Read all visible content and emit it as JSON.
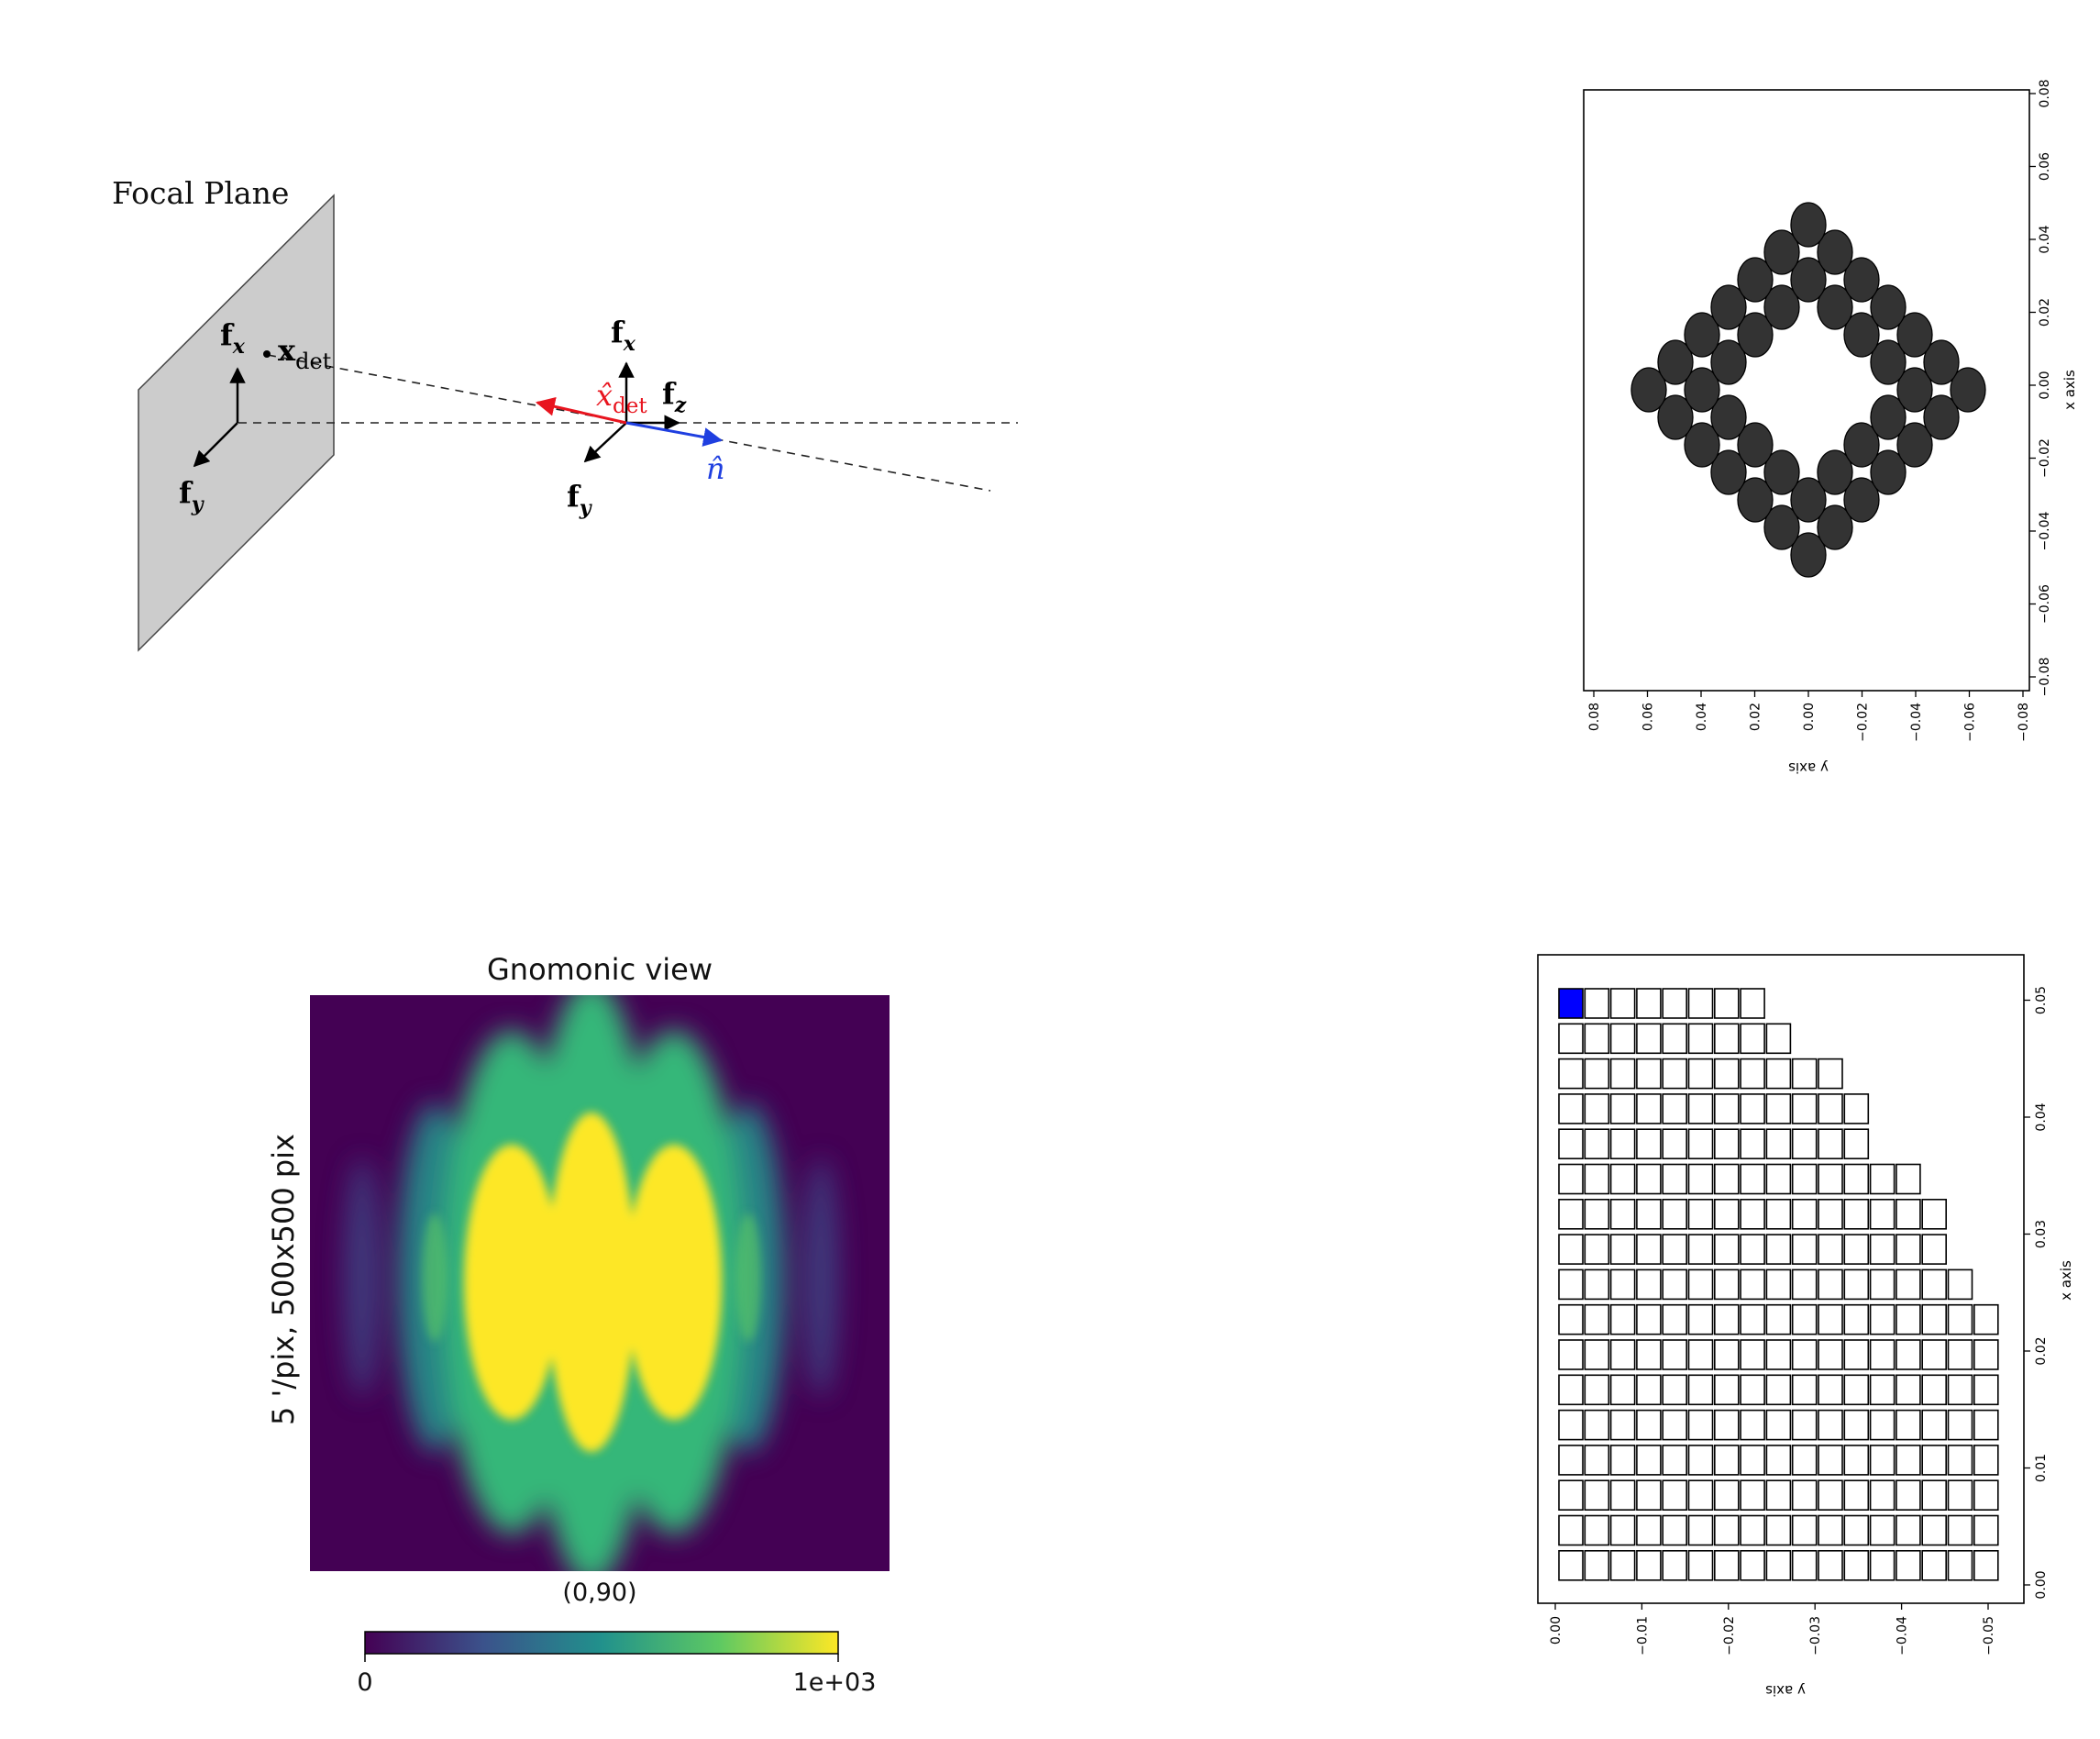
{
  "diagram": {
    "title": "Focal Plane",
    "labels": {
      "fx_left": "f",
      "fx_left_sub": "x",
      "fy_left": "f",
      "fy_left_sub": "y",
      "xdet": "x",
      "xdet_sub": "det",
      "fx_right": "f",
      "fx_right_sub": "x",
      "fz_right": "f",
      "fz_right_sub": "z",
      "fy_right": "f",
      "fy_right_sub": "y",
      "xhat": "x̂",
      "xhat_sub": "det",
      "nhat": "n̂"
    },
    "colors": {
      "plane": "#cccccc",
      "xhat": "#e8141e",
      "nhat": "#1f3fe0"
    }
  },
  "hex_plot": {
    "ylabel": "x axis",
    "xlabel": "y axis",
    "x_ticks": [
      "0.08",
      "0.06",
      "0.04",
      "0.02",
      "0.00",
      "−0.02",
      "−0.04",
      "−0.06",
      "−0.08"
    ],
    "y_ticks": [
      "−0.08",
      "−0.06",
      "−0.04",
      "−0.02",
      "0.00",
      "0.02",
      "0.04",
      "0.06",
      "0.08"
    ],
    "colors": {
      "detector": "#333333"
    }
  },
  "gnomonic": {
    "title": "Gnomonic view",
    "side_label": "5 '/pix,   500x500 pix",
    "center_label": "(0,90)",
    "cbar_min": "0",
    "cbar_max": "1e+03",
    "colors": {
      "low": "#440154",
      "mid": "#21918c",
      "high": "#fde725"
    }
  },
  "square_plot": {
    "ylabel": "x axis",
    "xlabel": "y axis",
    "x_ticks": [
      "0.00",
      "−0.01",
      "−0.02",
      "−0.03",
      "−0.04",
      "−0.05"
    ],
    "y_ticks": [
      "0.00",
      "0.01",
      "0.02",
      "0.03",
      "0.04",
      "0.05"
    ],
    "colors": {
      "highlight": "#0000ff"
    }
  }
}
